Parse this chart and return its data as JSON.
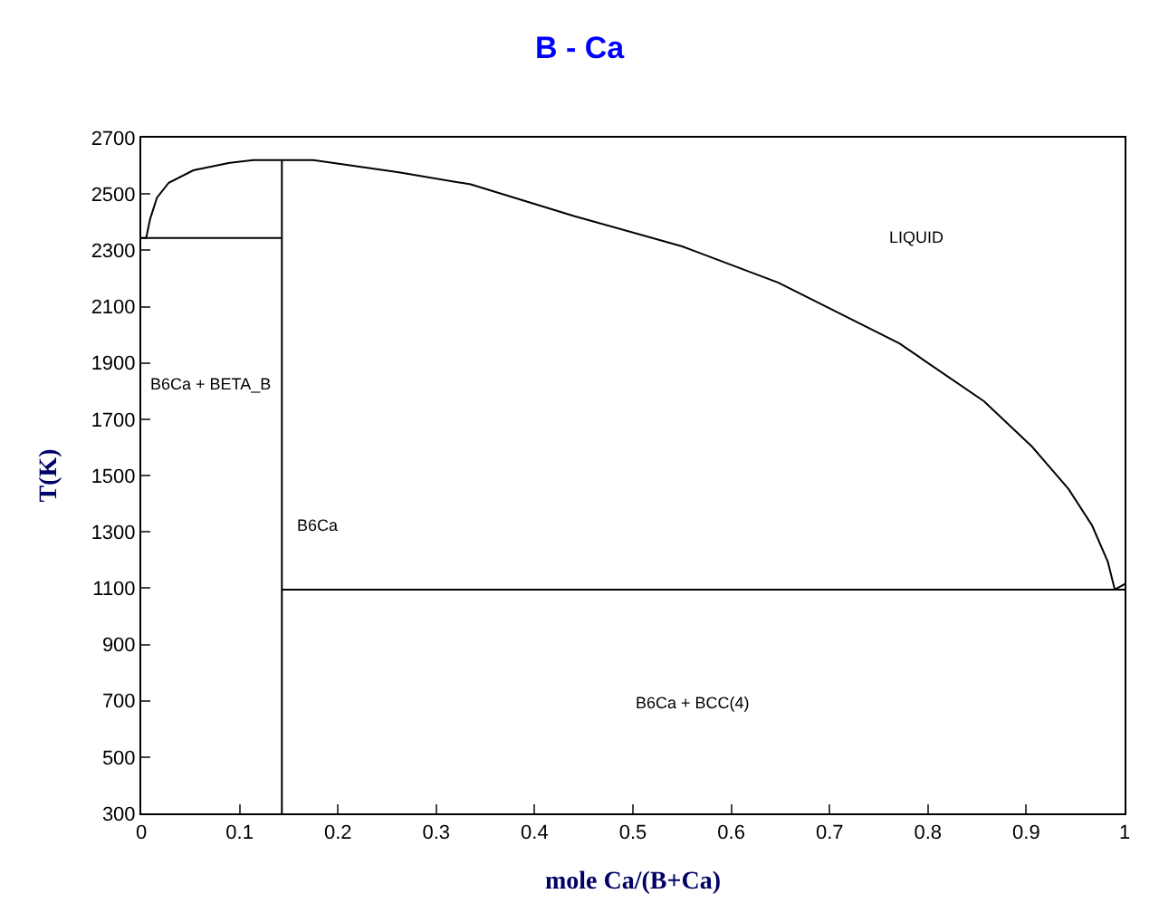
{
  "chart_data": {
    "type": "line",
    "title": "B - Ca",
    "xlabel": "mole Ca/(B+Ca)",
    "ylabel": "T(K)",
    "series": [
      {
        "color": "#000000",
        "x": [
          0,
          0.005,
          0.009,
          0.016,
          0.028,
          0.053,
          0.09,
          0.114,
          0.143,
          0.175,
          0.262,
          0.335,
          0.44,
          0.55,
          0.648,
          0.771,
          0.857,
          0.906,
          0.943,
          0.967,
          0.983,
          0.99,
          0.998,
          1.0
        ],
        "values": [
          2344,
          2344,
          2411,
          2487,
          2540,
          2584,
          2611,
          2620,
          2620,
          2620,
          2577,
          2534,
          2422,
          2314,
          2185,
          1969,
          1764,
          1602,
          1452,
          1322,
          1193,
          1095,
          1110,
          1115
        ]
      },
      {
        "color": "#000000",
        "x": [
          0,
          0.143
        ],
        "values": [
          2344,
          2344
        ]
      },
      {
        "color": "#000000",
        "x": [
          0.143,
          1.0
        ],
        "values": [
          1095,
          1095
        ]
      },
      {
        "color": "#000000",
        "x": [
          0.143,
          0.143
        ],
        "values": [
          300,
          2620
        ]
      }
    ],
    "xlim": [
      0,
      1
    ],
    "xticks": [
      0,
      0.1,
      0.2,
      0.3,
      0.4,
      0.5,
      0.6,
      0.7,
      0.8,
      0.9,
      1
    ],
    "ylim": [
      300,
      2700
    ],
    "yticks": [
      300,
      500,
      700,
      900,
      1100,
      1300,
      1500,
      1700,
      1900,
      2100,
      2300,
      2500,
      2700
    ],
    "annotations": [
      "LIQUID",
      "B6Ca + BETA_B",
      "B6Ca",
      "B6Ca + BCC(4)"
    ],
    "marker": "none",
    "line_style": "solid"
  }
}
